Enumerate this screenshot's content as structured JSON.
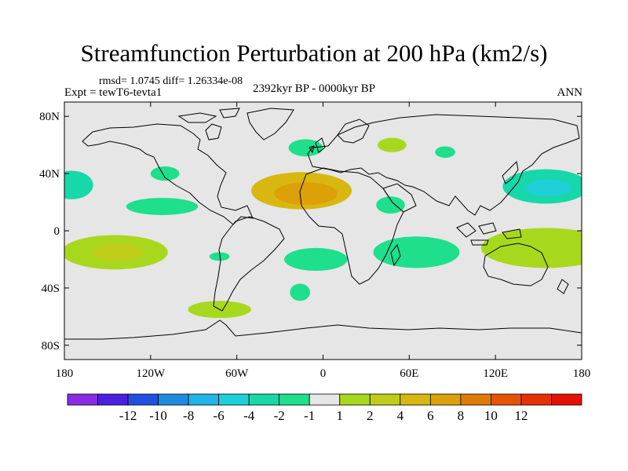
{
  "chart_data": {
    "type": "heatmap",
    "title": "Streamfunction Perturbation at 200 hPa (km2/s)",
    "subtitle_left_top": "rmsd= 1.0745 diff= 1.26334e-08",
    "subtitle_left": "Expt = tewT6-tevta1",
    "subtitle_center": "2392kyr BP - 0000kyr BP",
    "subtitle_right": "ANN",
    "x_ticks": [
      {
        "value": -180,
        "label": "180"
      },
      {
        "value": -120,
        "label": "120W"
      },
      {
        "value": -60,
        "label": "60W"
      },
      {
        "value": 0,
        "label": "0"
      },
      {
        "value": 60,
        "label": "60E"
      },
      {
        "value": 120,
        "label": "120E"
      },
      {
        "value": 180,
        "label": "180"
      }
    ],
    "y_ticks": [
      {
        "value": 80,
        "label": "80N"
      },
      {
        "value": 40,
        "label": "40N"
      },
      {
        "value": 0,
        "label": "0"
      },
      {
        "value": -40,
        "label": "40S"
      },
      {
        "value": -80,
        "label": "80S"
      }
    ],
    "xlim": [
      -180,
      180
    ],
    "ylim": [
      -90,
      90
    ],
    "colorbar": {
      "colors": [
        "#8a2be2",
        "#4b20e0",
        "#2150e0",
        "#1e8be0",
        "#21b4e6",
        "#1fcfd8",
        "#16d8a8",
        "#1edf8c",
        "#e6e6e6",
        "#a8d81e",
        "#c0cc1a",
        "#d8b810",
        "#dca008",
        "#e07a06",
        "#e45404",
        "#e63104",
        "#e61000"
      ],
      "labels": [
        "-12",
        "-10",
        "-8",
        "-6",
        "-4",
        "-2",
        "-1",
        "1",
        "2",
        "4",
        "6",
        "8",
        "10",
        "12"
      ]
    },
    "anomalies": [
      {
        "name": "north-africa-high",
        "lon": -15,
        "lat": 28,
        "rx": 35,
        "ry": 13,
        "level": 4
      },
      {
        "name": "north-africa-core",
        "lon": -12,
        "lat": 26,
        "rx": 22,
        "ry": 8,
        "level": 6
      },
      {
        "name": "east-pacific-positive",
        "lon": -145,
        "lat": -15,
        "rx": 37,
        "ry": 12,
        "level": 1
      },
      {
        "name": "east-pacific-core",
        "lon": -143,
        "lat": -15,
        "rx": 18,
        "ry": 6,
        "level": 2
      },
      {
        "name": "southwest-pacific-positive",
        "lon": 155,
        "lat": -12,
        "rx": 45,
        "ry": 14,
        "level": 1
      },
      {
        "name": "south-atlantic-positive",
        "lon": -72,
        "lat": -55,
        "rx": 22,
        "ry": 6,
        "level": 1
      },
      {
        "name": "north-africa-small-positive",
        "lon": 48,
        "lat": 60,
        "rx": 10,
        "ry": 5,
        "level": 1
      },
      {
        "name": "northwest-pacific-negative",
        "lon": 155,
        "lat": 31,
        "rx": 30,
        "ry": 12,
        "level": -2
      },
      {
        "name": "northwest-pacific-core",
        "lon": 157,
        "lat": 30,
        "rx": 16,
        "ry": 6,
        "level": -4
      },
      {
        "name": "north-pacific-west-negative",
        "lon": -175,
        "lat": 32,
        "rx": 15,
        "ry": 10,
        "level": -2
      },
      {
        "name": "north-atlantic-negative",
        "lon": -12,
        "lat": 58,
        "rx": 12,
        "ry": 6,
        "level": -1
      },
      {
        "name": "indian-ocean-negative",
        "lon": 65,
        "lat": -15,
        "rx": 30,
        "ry": 11,
        "level": -1
      },
      {
        "name": "south-atlantic-negative",
        "lon": -5,
        "lat": -20,
        "rx": 22,
        "ry": 8,
        "level": -1
      },
      {
        "name": "arabia-negative",
        "lon": 47,
        "lat": 18,
        "rx": 10,
        "ry": 6,
        "level": -1
      },
      {
        "name": "pacific-north-negative",
        "lon": -112,
        "lat": 17,
        "rx": 25,
        "ry": 6,
        "level": -1
      },
      {
        "name": "central-asia-negative",
        "lon": 85,
        "lat": 55,
        "rx": 7,
        "ry": 4,
        "level": -1
      },
      {
        "name": "south-atlantic-small-negative",
        "lon": -16,
        "lat": -43,
        "rx": 7,
        "ry": 6,
        "level": -1
      },
      {
        "name": "south-america-negative",
        "lon": -72,
        "lat": -18,
        "rx": 7,
        "ry": 3,
        "level": -1
      },
      {
        "name": "europe-negative",
        "lon": -110,
        "lat": 40,
        "rx": 10,
        "ry": 5,
        "level": -1
      }
    ]
  }
}
